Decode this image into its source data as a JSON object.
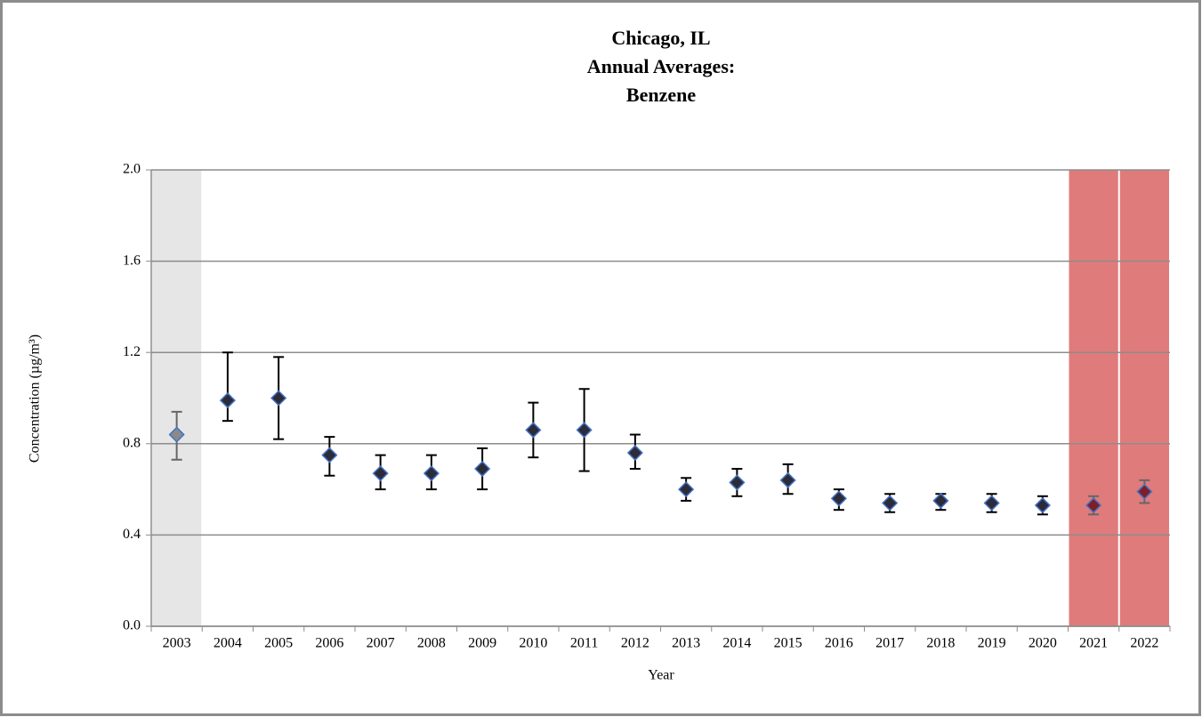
{
  "chart_data": {
    "type": "errorbar",
    "title": [
      "Chicago, IL",
      "Annual Averages:",
      "Benzene"
    ],
    "x_label": "Year",
    "y_label": "Concentration (µg/m³)",
    "categories": [
      "2003",
      "2004",
      "2005",
      "2006",
      "2007",
      "2008",
      "2009",
      "2010",
      "2011",
      "2012",
      "2013",
      "2014",
      "2015",
      "2016",
      "2017",
      "2018",
      "2019",
      "2020",
      "2021",
      "2022"
    ],
    "series": [
      {
        "color": "#2b2b3a",
        "edge_color": "#4472c4",
        "values": [
          0.84,
          0.99,
          1.0,
          0.75,
          0.67,
          0.67,
          0.69,
          0.86,
          0.86,
          0.76,
          0.6,
          0.63,
          0.64,
          0.56,
          0.54,
          0.55,
          0.54,
          0.53,
          0.53,
          0.59
        ],
        "lower": [
          0.73,
          0.9,
          0.82,
          0.66,
          0.6,
          0.6,
          0.6,
          0.74,
          0.68,
          0.69,
          0.55,
          0.57,
          0.58,
          0.51,
          0.5,
          0.51,
          0.5,
          0.49,
          0.49,
          0.54
        ],
        "upper": [
          0.94,
          1.2,
          1.18,
          0.83,
          0.75,
          0.75,
          0.78,
          0.98,
          1.04,
          0.84,
          0.65,
          0.69,
          0.71,
          0.6,
          0.58,
          0.58,
          0.58,
          0.57,
          0.57,
          0.64
        ],
        "point_colors": [
          "#8a8a8a",
          null,
          null,
          null,
          null,
          null,
          null,
          null,
          null,
          null,
          null,
          null,
          null,
          null,
          null,
          null,
          null,
          null,
          "#7a1f2b",
          "#7a1f2b"
        ]
      }
    ],
    "shaded": [
      {
        "index": 0,
        "color": "#e6e6e6"
      },
      {
        "index": 18,
        "color": "#e07b7b"
      },
      {
        "index": 19,
        "color": "#e07b7b"
      }
    ],
    "ylim": [
      0,
      2.0
    ],
    "yticks": [
      {
        "value": 0,
        "label": "0.0"
      },
      0.4,
      0.8,
      1.2,
      1.6,
      {
        "value": 2,
        "label": "2.0"
      }
    ],
    "grid": true
  }
}
